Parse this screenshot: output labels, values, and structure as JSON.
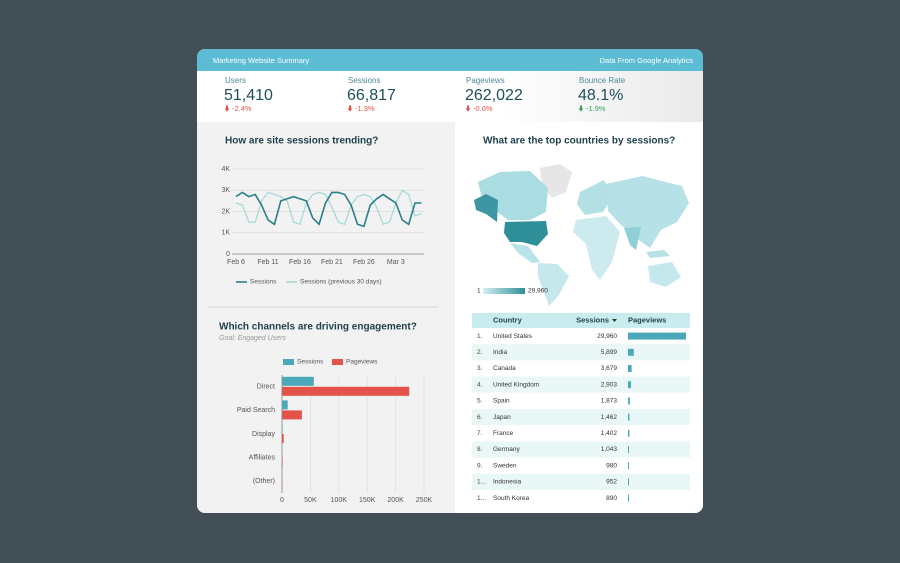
{
  "header": {
    "title": "Marketing Website Summary",
    "source": "Data From Google Analytics"
  },
  "kpis": [
    {
      "label": "Users",
      "value": "51,410",
      "change": "-2.4%",
      "color": "#e4534a"
    },
    {
      "label": "Sessions",
      "value": "66,817",
      "change": "-1.3%",
      "color": "#e4534a"
    },
    {
      "label": "Pageviews",
      "value": "262,022",
      "change": "-0.6%",
      "color": "#e4534a"
    },
    {
      "label": "Bounce Rate",
      "value": "48.1%",
      "change": "-1.9%",
      "color": "#3aa35a"
    }
  ],
  "chart_data": [
    {
      "type": "line",
      "title": "How are site sessions trending?",
      "categories": [
        "Feb 6",
        null,
        null,
        null,
        null,
        "Feb 11",
        null,
        null,
        null,
        null,
        "Feb 16",
        null,
        null,
        null,
        null,
        "Feb 21",
        null,
        null,
        null,
        null,
        "Feb 26",
        null,
        null,
        null,
        null,
        "Mar 3",
        null,
        null,
        null,
        null
      ],
      "series": [
        {
          "name": "Sessions",
          "color": "#2a7f8a",
          "values": [
            2700,
            2900,
            2700,
            2800,
            2300,
            1600,
            1400,
            2500,
            2600,
            2700,
            2600,
            2500,
            1700,
            1400,
            2400,
            2900,
            2900,
            2800,
            2300,
            1400,
            1300,
            2300,
            2600,
            2800,
            2600,
            2400,
            1600,
            1400,
            2400,
            2400
          ]
        },
        {
          "name": "Sessions (previous 30 days)",
          "color": "#a3d8d8",
          "values": [
            2400,
            2300,
            1500,
            1500,
            2500,
            2900,
            2800,
            2700,
            2500,
            1500,
            1400,
            2400,
            2800,
            2900,
            2800,
            2200,
            1500,
            1400,
            2300,
            2700,
            2800,
            2700,
            2200,
            1400,
            1500,
            2400,
            3000,
            2800,
            1800,
            1900
          ]
        }
      ],
      "ylim": [
        0,
        4000
      ],
      "yticks": [
        0,
        {
          "value": 1000,
          "label": "1K"
        },
        {
          "value": 2000,
          "label": "2K"
        },
        {
          "value": 3000,
          "label": "3K"
        },
        {
          "value": 4000,
          "label": "4K"
        }
      ],
      "grid": true
    },
    {
      "type": "hbar",
      "title": "Which channels are driving engagement?",
      "subtitle": "Goal: Engaged Users",
      "categories": [
        "Direct",
        "Paid Search",
        "Display",
        "Affiliates",
        "(Other)"
      ],
      "series": [
        {
          "name": "Sessions",
          "color": "#4aa8b8",
          "values": [
            56000,
            10000,
            1000,
            500,
            200
          ]
        },
        {
          "name": "Pageviews",
          "color": "#e4534a",
          "values": [
            224000,
            35000,
            3000,
            1000,
            500
          ]
        }
      ],
      "xlim": [
        0,
        250000
      ],
      "xticks": [
        0,
        {
          "value": 50000,
          "label": "50K"
        },
        {
          "value": 100000,
          "label": "100K"
        },
        {
          "value": 150000,
          "label": "150K"
        },
        {
          "value": 200000,
          "label": "200K"
        },
        {
          "value": 250000,
          "label": "250K"
        }
      ],
      "grid": true
    }
  ],
  "map": {
    "title": "What are the top countries by sessions?",
    "legend_min": "1",
    "legend_max": "29,960"
  },
  "table": {
    "columns": [
      "Country",
      "Sessions",
      "Pageviews"
    ],
    "rows": [
      {
        "rank": "1.",
        "country": "United States",
        "sessions": "29,960",
        "pageviews": 120000
      },
      {
        "rank": "2.",
        "country": "India",
        "sessions": "5,899",
        "pageviews": 12000
      },
      {
        "rank": "3.",
        "country": "Canada",
        "sessions": "3,679",
        "pageviews": 7500
      },
      {
        "rank": "4.",
        "country": "United Kingdom",
        "sessions": "2,903",
        "pageviews": 6000
      },
      {
        "rank": "5.",
        "country": "Spain",
        "sessions": "1,873",
        "pageviews": 3800
      },
      {
        "rank": "6.",
        "country": "Japan",
        "sessions": "1,462",
        "pageviews": 3000
      },
      {
        "rank": "7.",
        "country": "France",
        "sessions": "1,402",
        "pageviews": 2900
      },
      {
        "rank": "8.",
        "country": "Germany",
        "sessions": "1,043",
        "pageviews": 2100
      },
      {
        "rank": "9.",
        "country": "Sweden",
        "sessions": "980",
        "pageviews": 2000
      },
      {
        "rank": "1...",
        "country": "Indonesia",
        "sessions": "952",
        "pageviews": 1900
      },
      {
        "rank": "1...",
        "country": "South Korea",
        "sessions": "890",
        "pageviews": 1800
      }
    ]
  }
}
